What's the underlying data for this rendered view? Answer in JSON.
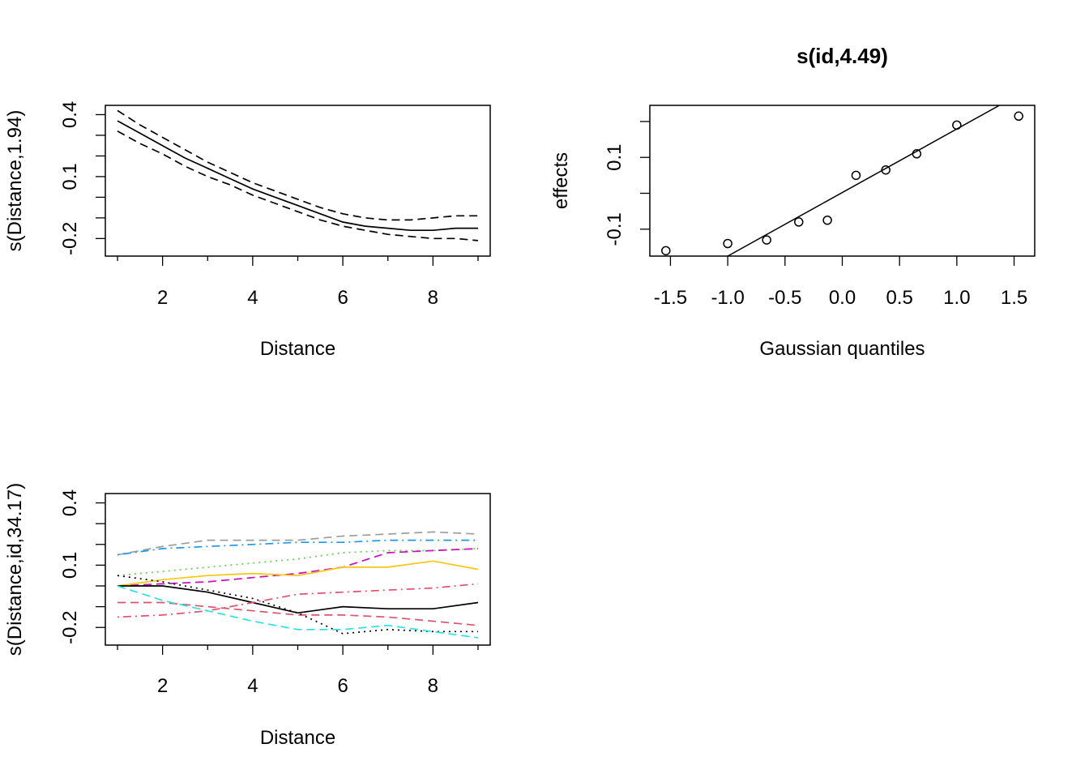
{
  "chart_data": [
    {
      "type": "line",
      "title": "",
      "xlabel": "Distance",
      "ylabel": "s(Distance,1.94)",
      "xlim": [
        0.73,
        9.27
      ],
      "ylim": [
        -0.285,
        0.445
      ],
      "x_ticks": [
        2,
        4,
        6,
        8
      ],
      "x_minor_ticks": [
        1,
        3,
        5,
        7,
        9
      ],
      "y_ticks": [
        {
          "value": 0.4,
          "label": "0.4"
        },
        {
          "value": 0.3,
          "label": ""
        },
        {
          "value": 0.2,
          "label": ""
        },
        {
          "value": 0.1,
          "label": "0.1"
        },
        {
          "value": 0.0,
          "label": ""
        },
        {
          "value": -0.1,
          "label": ""
        },
        {
          "value": -0.2,
          "label": "-0.2"
        }
      ],
      "x": [
        1,
        1.5,
        2,
        2.5,
        3,
        3.5,
        4,
        4.5,
        5,
        5.5,
        6,
        6.5,
        7,
        7.5,
        8,
        8.5,
        9
      ],
      "series": [
        {
          "style": "solid",
          "values": [
            0.37,
            0.31,
            0.25,
            0.19,
            0.14,
            0.09,
            0.04,
            0.0,
            -0.04,
            -0.08,
            -0.12,
            -0.14,
            -0.15,
            -0.16,
            -0.16,
            -0.15,
            -0.15
          ]
        },
        {
          "style": "dashed",
          "values": [
            0.42,
            0.35,
            0.29,
            0.23,
            0.17,
            0.12,
            0.07,
            0.03,
            -0.01,
            -0.05,
            -0.08,
            -0.1,
            -0.11,
            -0.11,
            -0.1,
            -0.09,
            -0.09
          ]
        },
        {
          "style": "dashed",
          "values": [
            0.32,
            0.26,
            0.21,
            0.15,
            0.1,
            0.06,
            0.01,
            -0.03,
            -0.07,
            -0.11,
            -0.14,
            -0.16,
            -0.18,
            -0.19,
            -0.2,
            -0.2,
            -0.21
          ]
        }
      ]
    },
    {
      "type": "scatter",
      "title": "s(id,4.49)",
      "xlabel": "Gaussian quantiles",
      "ylabel": "effects",
      "xlim": [
        -1.68,
        1.68
      ],
      "ylim": [
        -0.175,
        0.245
      ],
      "x_ticks": [
        -1.5,
        -1.0,
        -0.5,
        0.0,
        0.5,
        1.0,
        1.5
      ],
      "x_tick_labels": [
        "-1.5",
        "-1.0",
        "-0.5",
        "0.0",
        "0.5",
        "1.0",
        "1.5"
      ],
      "y_ticks": [
        {
          "value": 0.2,
          "label": ""
        },
        {
          "value": 0.1,
          "label": "0.1"
        },
        {
          "value": 0.0,
          "label": ""
        },
        {
          "value": -0.1,
          "label": "-0.1"
        }
      ],
      "x": [
        -1.54,
        -1.0,
        -0.66,
        -0.38,
        -0.13,
        0.12,
        0.38,
        0.65,
        1.0,
        1.54
      ],
      "y": [
        -0.16,
        -0.14,
        -0.13,
        -0.08,
        -0.075,
        0.05,
        0.065,
        0.11,
        0.19,
        0.215
      ],
      "reference_line": {
        "x": [
          -1.0,
          1.4
        ],
        "y": [
          -0.175,
          0.25
        ]
      }
    },
    {
      "type": "line",
      "title": "",
      "xlabel": "Distance",
      "ylabel": "s(Distance,id,34.17)",
      "xlim": [
        0.73,
        9.27
      ],
      "ylim": [
        -0.285,
        0.445
      ],
      "x_ticks": [
        2,
        4,
        6,
        8
      ],
      "x_minor_ticks": [
        1,
        3,
        5,
        7,
        9
      ],
      "y_ticks": [
        {
          "value": 0.4,
          "label": "0.4"
        },
        {
          "value": 0.3,
          "label": ""
        },
        {
          "value": 0.2,
          "label": ""
        },
        {
          "value": 0.1,
          "label": "0.1"
        },
        {
          "value": 0.0,
          "label": ""
        },
        {
          "value": -0.1,
          "label": ""
        },
        {
          "value": -0.2,
          "label": "-0.2"
        }
      ],
      "x": [
        1,
        2,
        3,
        4,
        5,
        6,
        7,
        8,
        9
      ],
      "series": [
        {
          "color": "#9e9e9e",
          "style": "dashed",
          "values": [
            0.15,
            0.19,
            0.22,
            0.22,
            0.22,
            0.24,
            0.25,
            0.26,
            0.25
          ]
        },
        {
          "color": "#2297e6",
          "style": "dashdot",
          "values": [
            0.15,
            0.18,
            0.19,
            0.2,
            0.21,
            0.21,
            0.22,
            0.22,
            0.22
          ]
        },
        {
          "color": "#61d04f",
          "style": "dotted",
          "values": [
            0.05,
            0.07,
            0.09,
            0.11,
            0.13,
            0.16,
            0.17,
            0.17,
            0.18
          ]
        },
        {
          "color": "#cd0bbc",
          "style": "dashed",
          "values": [
            0.0,
            0.01,
            0.02,
            0.04,
            0.06,
            0.09,
            0.16,
            0.17,
            0.18
          ]
        },
        {
          "color": "#f5c710",
          "style": "solid",
          "values": [
            0.0,
            0.03,
            0.05,
            0.06,
            0.05,
            0.09,
            0.09,
            0.12,
            0.08
          ]
        },
        {
          "color": "#000000",
          "style": "solid",
          "values": [
            0.0,
            0.0,
            -0.03,
            -0.08,
            -0.13,
            -0.1,
            -0.11,
            -0.11,
            -0.08
          ]
        },
        {
          "color": "#df536b",
          "style": "dashdot",
          "values": [
            -0.15,
            -0.14,
            -0.12,
            -0.08,
            -0.04,
            -0.03,
            -0.02,
            -0.01,
            0.01
          ]
        },
        {
          "color": "#df536b",
          "style": "dashed",
          "values": [
            -0.08,
            -0.08,
            -0.1,
            -0.12,
            -0.14,
            -0.14,
            -0.15,
            -0.17,
            -0.19
          ]
        },
        {
          "color": "#000000",
          "style": "dotted",
          "values": [
            0.05,
            0.02,
            -0.02,
            -0.06,
            -0.13,
            -0.23,
            -0.21,
            -0.22,
            -0.22
          ]
        },
        {
          "color": "#28e2e5",
          "style": "dashed",
          "values": [
            -0.0,
            -0.07,
            -0.12,
            -0.17,
            -0.21,
            -0.21,
            -0.19,
            -0.22,
            -0.25
          ]
        }
      ]
    }
  ]
}
